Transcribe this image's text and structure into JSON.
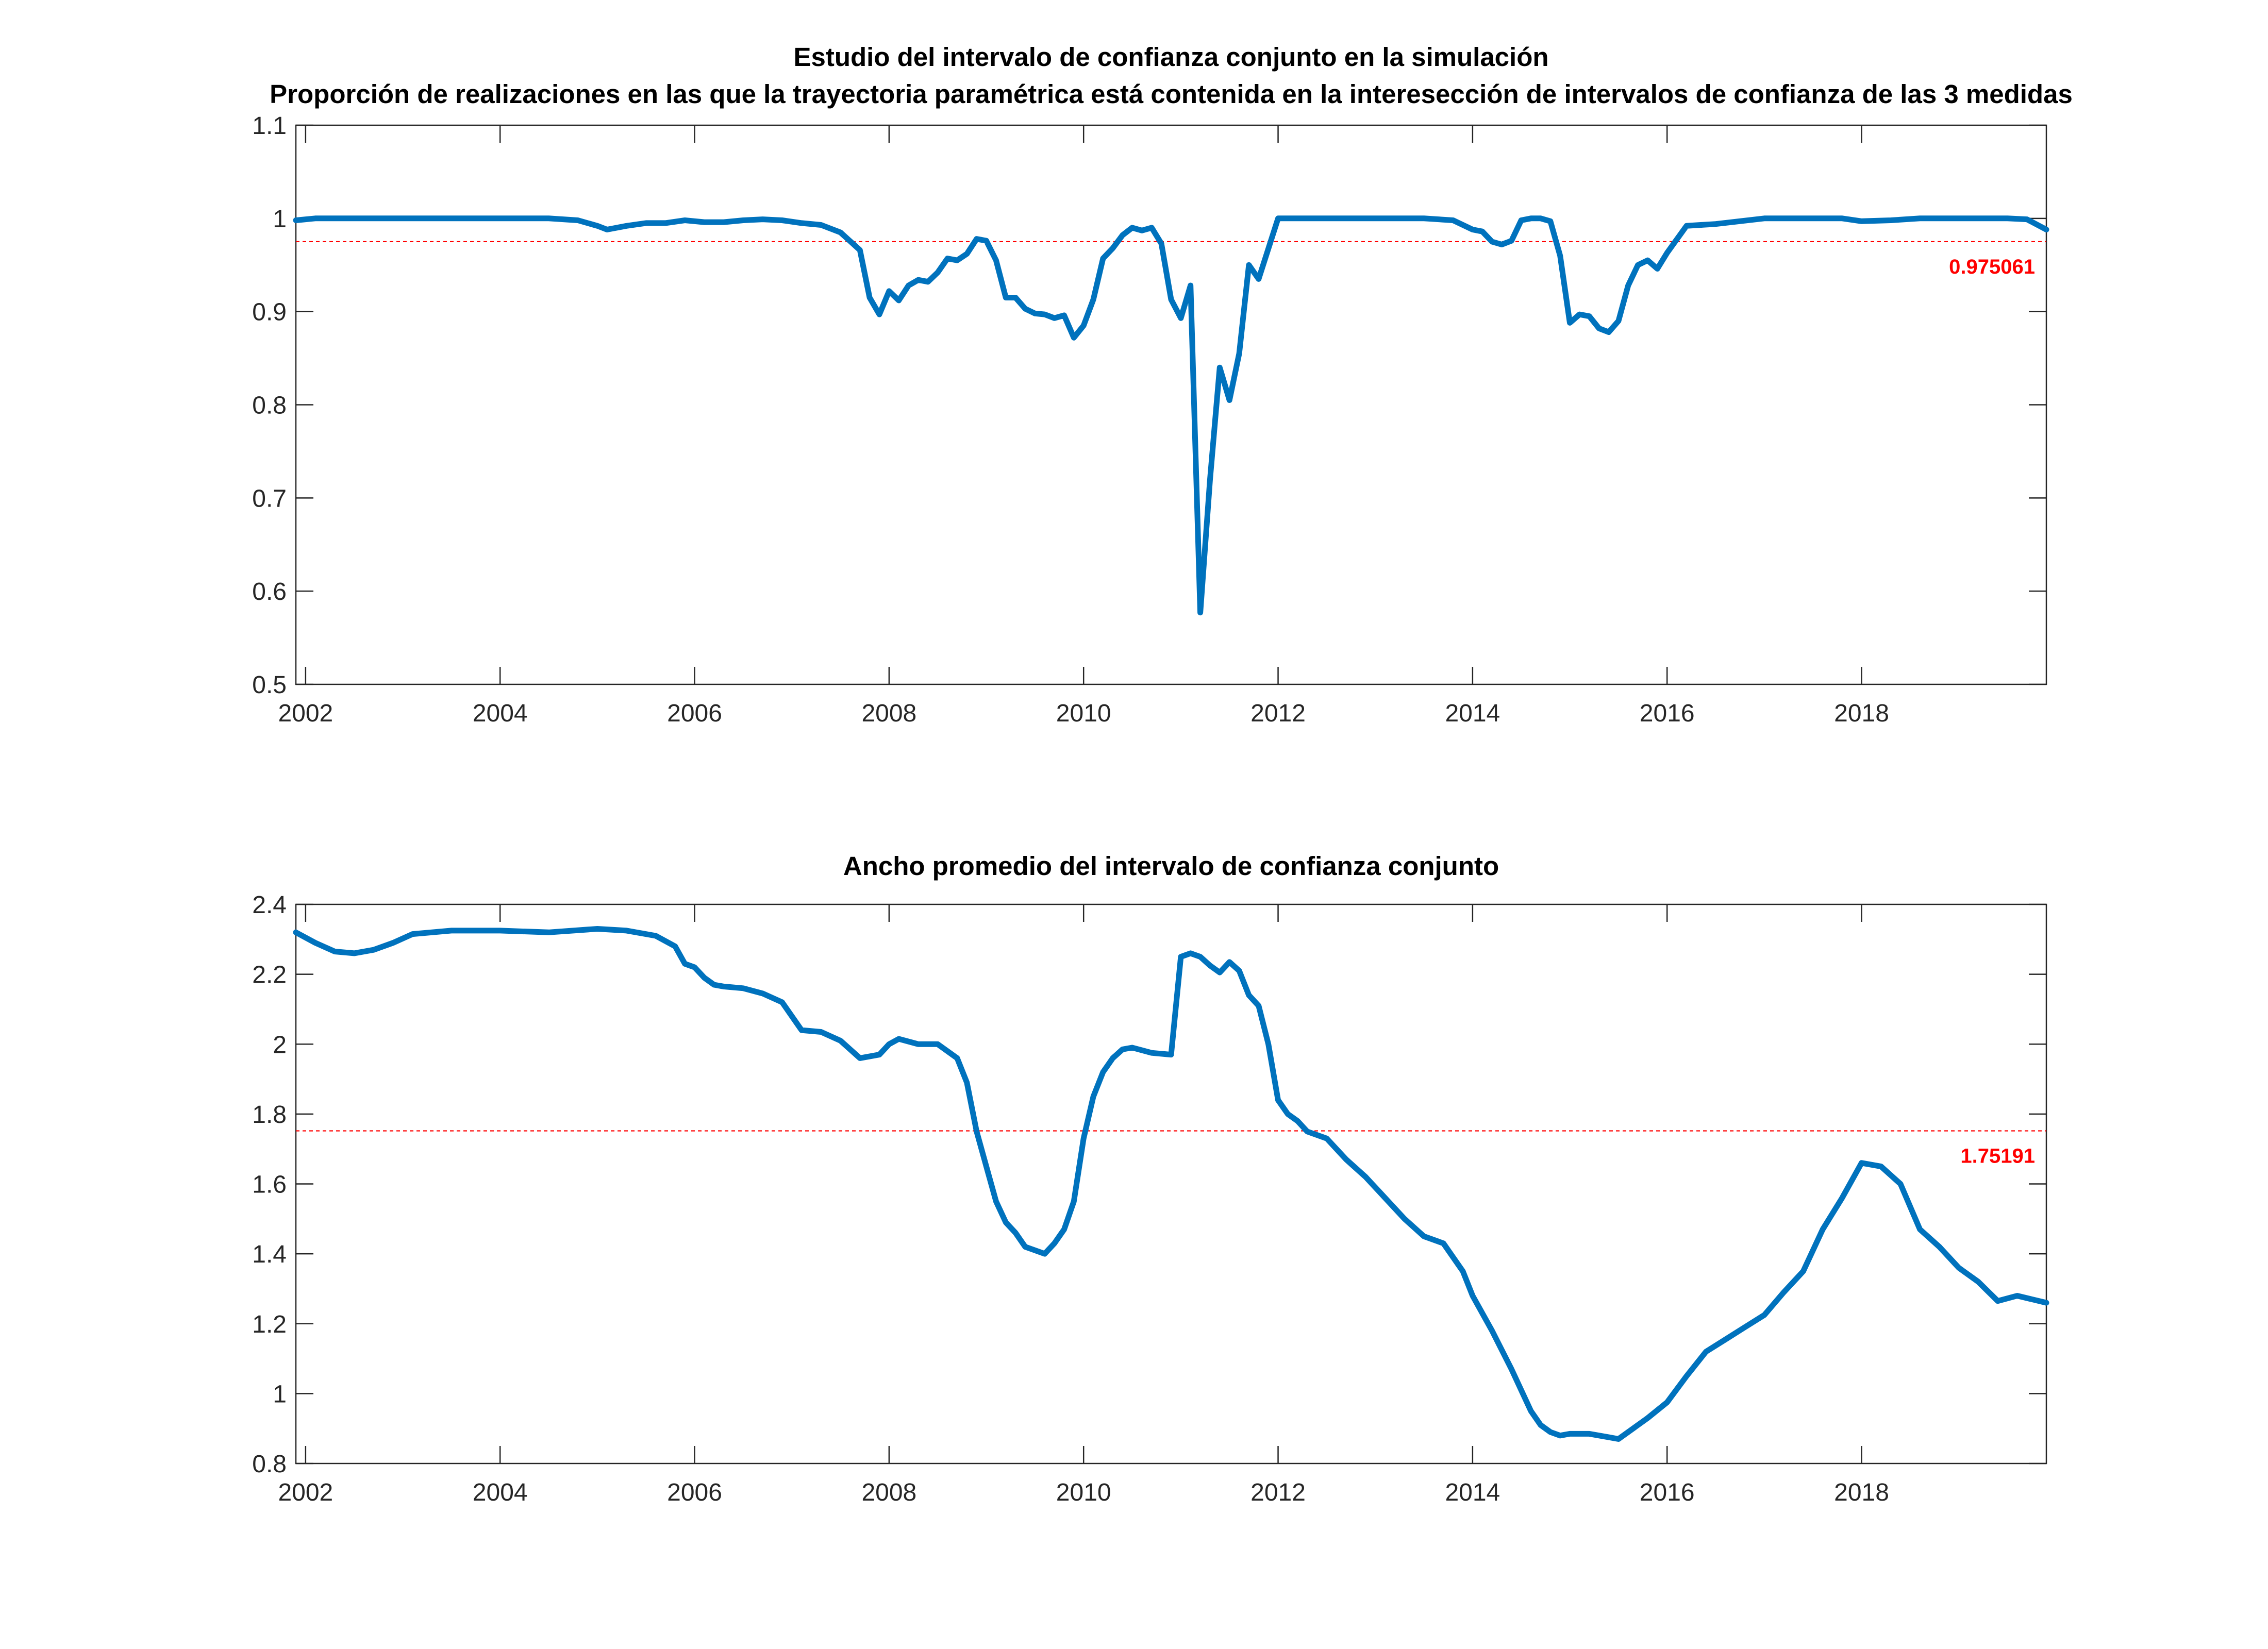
{
  "colors": {
    "line": "#0072BD",
    "reference": "#FF0000",
    "axis": "#262626",
    "background": "#FFFFFF"
  },
  "chart_data": [
    {
      "type": "line",
      "title": "Estudio del intervalo de confianza conjunto en la simulación",
      "subtitle": "Proporción de realizaciones en las que la trayectoria paramétrica está contenida en la interesección de intervalos de confianza de las 3 medidas",
      "xlabel": "",
      "ylabel": "",
      "xlim": [
        2001.9,
        2019.9
      ],
      "ylim": [
        0.5,
        1.1
      ],
      "xticks": [
        2002,
        2004,
        2006,
        2008,
        2010,
        2012,
        2014,
        2016,
        2018
      ],
      "yticks": [
        0.5,
        0.6,
        0.7,
        0.8,
        0.9,
        1,
        1.1
      ],
      "ytick_labels": [
        "0.5",
        "0.6",
        "0.7",
        "0.8",
        "0.9",
        "1",
        "1.1"
      ],
      "grid": false,
      "reference_line": {
        "value": 0.975061,
        "label": "0.975061"
      },
      "series": [
        {
          "x": [
            2001.9,
            2002.1,
            2002.4,
            2002.7,
            2003.0,
            2003.5,
            2004.0,
            2004.5,
            2004.8,
            2005.0,
            2005.1,
            2005.3,
            2005.5,
            2005.7,
            2005.9,
            2006.1,
            2006.3,
            2006.5,
            2006.7,
            2006.9,
            2007.1,
            2007.3,
            2007.5,
            2007.7,
            2007.8,
            2007.9,
            2008.0,
            2008.1,
            2008.2,
            2008.3,
            2008.4,
            2008.5,
            2008.6,
            2008.7,
            2008.8,
            2008.9,
            2009.0,
            2009.1,
            2009.2,
            2009.3,
            2009.4,
            2009.5,
            2009.6,
            2009.7,
            2009.8,
            2009.9,
            2010.0,
            2010.1,
            2010.2,
            2010.3,
            2010.4,
            2010.5,
            2010.6,
            2010.7,
            2010.8,
            2010.9,
            2011.0,
            2011.1,
            2011.2,
            2011.3,
            2011.4,
            2011.5,
            2011.6,
            2011.7,
            2011.8,
            2012.0,
            2012.5,
            2013.0,
            2013.5,
            2013.8,
            2014.0,
            2014.1,
            2014.2,
            2014.3,
            2014.4,
            2014.5,
            2014.6,
            2014.7,
            2014.8,
            2014.9,
            2015.0,
            2015.1,
            2015.2,
            2015.3,
            2015.4,
            2015.5,
            2015.6,
            2015.7,
            2015.8,
            2015.9,
            2016.0,
            2016.2,
            2016.5,
            2017.0,
            2017.5,
            2017.8,
            2018.0,
            2018.3,
            2018.6,
            2019.0,
            2019.5,
            2019.7,
            2019.9
          ],
          "y": [
            0.998,
            1.0,
            1.0,
            1.0,
            1.0,
            1.0,
            1.0,
            1.0,
            0.998,
            0.992,
            0.988,
            0.992,
            0.995,
            0.995,
            0.998,
            0.996,
            0.996,
            0.998,
            0.999,
            0.998,
            0.995,
            0.993,
            0.985,
            0.966,
            0.915,
            0.897,
            0.922,
            0.912,
            0.928,
            0.934,
            0.932,
            0.942,
            0.957,
            0.955,
            0.962,
            0.978,
            0.976,
            0.955,
            0.915,
            0.915,
            0.903,
            0.898,
            0.897,
            0.893,
            0.896,
            0.872,
            0.885,
            0.913,
            0.957,
            0.968,
            0.982,
            0.99,
            0.987,
            0.99,
            0.973,
            0.913,
            0.893,
            0.928,
            0.577,
            0.72,
            0.84,
            0.805,
            0.855,
            0.95,
            0.935,
            1.0,
            1.0,
            1.0,
            1.0,
            0.998,
            0.988,
            0.986,
            0.975,
            0.972,
            0.976,
            0.998,
            1.0,
            1.0,
            0.997,
            0.96,
            0.888,
            0.897,
            0.895,
            0.882,
            0.878,
            0.89,
            0.928,
            0.95,
            0.955,
            0.946,
            0.963,
            0.992,
            0.994,
            1.0,
            1.0,
            1.0,
            0.997,
            0.998,
            1.0,
            1.0,
            1.0,
            0.999,
            0.988
          ]
        }
      ]
    },
    {
      "type": "line",
      "title": "Ancho promedio del intervalo de confianza conjunto",
      "xlabel": "",
      "ylabel": "",
      "xlim": [
        2001.9,
        2019.9
      ],
      "ylim": [
        0.8,
        2.4
      ],
      "xticks": [
        2002,
        2004,
        2006,
        2008,
        2010,
        2012,
        2014,
        2016,
        2018
      ],
      "yticks": [
        0.8,
        1,
        1.2,
        1.4,
        1.6,
        1.8,
        2,
        2.2,
        2.4
      ],
      "ytick_labels": [
        "0.8",
        "1",
        "1.2",
        "1.4",
        "1.6",
        "1.8",
        "2",
        "2.2",
        "2.4"
      ],
      "grid": false,
      "reference_line": {
        "value": 1.75191,
        "label": "1.75191"
      },
      "series": [
        {
          "x": [
            2001.9,
            2002.1,
            2002.3,
            2002.5,
            2002.7,
            2002.9,
            2003.1,
            2003.5,
            2004.0,
            2004.5,
            2005.0,
            2005.3,
            2005.6,
            2005.8,
            2005.9,
            2006.0,
            2006.1,
            2006.2,
            2006.3,
            2006.5,
            2006.7,
            2006.9,
            2007.1,
            2007.3,
            2007.5,
            2007.7,
            2007.9,
            2008.0,
            2008.1,
            2008.3,
            2008.5,
            2008.7,
            2008.8,
            2008.9,
            2009.0,
            2009.1,
            2009.2,
            2009.3,
            2009.4,
            2009.5,
            2009.6,
            2009.7,
            2009.8,
            2009.9,
            2010.0,
            2010.1,
            2010.2,
            2010.3,
            2010.4,
            2010.5,
            2010.7,
            2010.9,
            2011.0,
            2011.1,
            2011.2,
            2011.3,
            2011.4,
            2011.5,
            2011.6,
            2011.7,
            2011.8,
            2011.9,
            2012.0,
            2012.1,
            2012.2,
            2012.3,
            2012.5,
            2012.7,
            2012.9,
            2013.1,
            2013.3,
            2013.5,
            2013.7,
            2013.9,
            2014.0,
            2014.2,
            2014.4,
            2014.6,
            2014.7,
            2014.8,
            2014.9,
            2015.0,
            2015.2,
            2015.4,
            2015.5,
            2015.6,
            2015.8,
            2016.0,
            2016.2,
            2016.4,
            2016.6,
            2016.8,
            2017.0,
            2017.2,
            2017.4,
            2017.6,
            2017.8,
            2018.0,
            2018.2,
            2018.4,
            2018.6,
            2018.8,
            2019.0,
            2019.2,
            2019.4,
            2019.6,
            2019.75,
            2019.9
          ],
          "y": [
            2.32,
            2.29,
            2.265,
            2.26,
            2.27,
            2.29,
            2.315,
            2.325,
            2.325,
            2.32,
            2.33,
            2.325,
            2.31,
            2.28,
            2.23,
            2.22,
            2.19,
            2.17,
            2.165,
            2.16,
            2.145,
            2.12,
            2.04,
            2.035,
            2.01,
            1.96,
            1.97,
            2.0,
            2.015,
            2.0,
            2.0,
            1.96,
            1.89,
            1.75,
            1.65,
            1.55,
            1.49,
            1.46,
            1.42,
            1.41,
            1.4,
            1.43,
            1.47,
            1.55,
            1.73,
            1.85,
            1.92,
            1.96,
            1.985,
            1.99,
            1.975,
            1.97,
            2.25,
            2.26,
            2.25,
            2.225,
            2.205,
            2.235,
            2.21,
            2.14,
            2.11,
            2.0,
            1.84,
            1.8,
            1.78,
            1.75,
            1.73,
            1.67,
            1.62,
            1.56,
            1.5,
            1.45,
            1.43,
            1.35,
            1.28,
            1.18,
            1.07,
            0.95,
            0.91,
            0.89,
            0.88,
            0.885,
            0.885,
            0.875,
            0.87,
            0.89,
            0.93,
            0.975,
            1.05,
            1.12,
            1.155,
            1.19,
            1.225,
            1.29,
            1.35,
            1.47,
            1.56,
            1.66,
            1.65,
            1.6,
            1.47,
            1.42,
            1.36,
            1.32,
            1.265,
            1.28,
            1.27,
            1.26
          ]
        }
      ]
    }
  ]
}
